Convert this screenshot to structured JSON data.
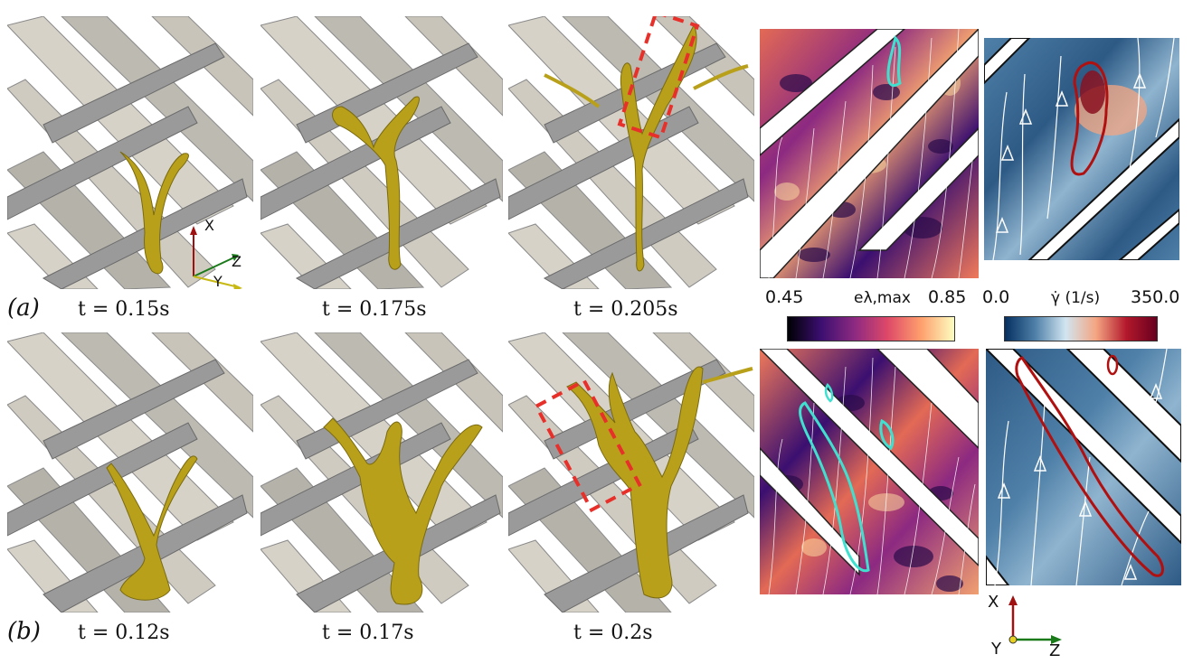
{
  "row_a": {
    "label": "(a)",
    "times": [
      "t = 0.15s",
      "t = 0.175s",
      "t = 0.205s"
    ]
  },
  "row_b": {
    "label": "(b)",
    "times": [
      "t = 0.12s",
      "t = 0.17s",
      "t = 0.2s"
    ]
  },
  "inset_axes": {
    "x": "X",
    "y": "Y",
    "z": "Z"
  },
  "bottom_axes": {
    "x": "X",
    "y": "Y",
    "z": "Z"
  },
  "colorbar_strain": {
    "min": "0.45",
    "max": "0.85",
    "label": "eλ,max",
    "colors": [
      "#000004",
      "#3b0f70",
      "#8c2981",
      "#de4968",
      "#fe9f6d",
      "#fcfdbf"
    ]
  },
  "colorbar_shear": {
    "min": "0.0",
    "max": "350.0",
    "label": "γ̇ (1/s)",
    "colors": [
      "#053061",
      "#4f80a8",
      "#d1e5f0",
      "#f4a582",
      "#b2182b",
      "#67001f"
    ]
  },
  "colors": {
    "droplet": "#b8a01a",
    "fiber": "#d6d2c8",
    "fiber_dark": "#8a8a8a",
    "highlight_box": "#e8302a",
    "cyan_contour": "#40e0d0",
    "red_contour": "#b01010"
  }
}
